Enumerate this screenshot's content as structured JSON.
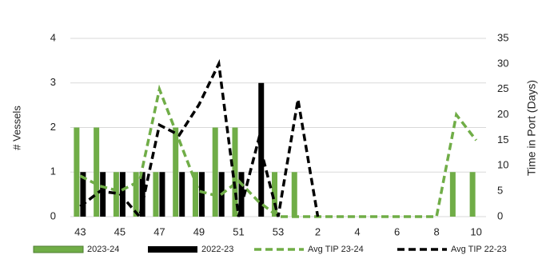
{
  "chart_data": {
    "type": "bar",
    "categories": [
      "43",
      null,
      "45",
      null,
      "47",
      null,
      "49",
      null,
      "51",
      null,
      "53",
      null,
      "2",
      null,
      "4",
      null,
      "6",
      null,
      "8",
      null,
      "10"
    ],
    "series": [
      {
        "name": "2023-24",
        "color": "#70ad47",
        "kind": "bar",
        "values": [
          2,
          2,
          1,
          1,
          1,
          2,
          1,
          2,
          2,
          0,
          1,
          1,
          0,
          0,
          0,
          0,
          0,
          0,
          0,
          1,
          1
        ]
      },
      {
        "name": "2022-23",
        "color": "#000000",
        "kind": "bar",
        "values": [
          1,
          1,
          1,
          1,
          1,
          1,
          1,
          1,
          1,
          3,
          0,
          0,
          0,
          0,
          0,
          0,
          0,
          0,
          0,
          0,
          0
        ]
      },
      {
        "name": "Avg TIP 23-24",
        "color": "#70ad47",
        "kind": "line",
        "axis": "y2",
        "values": [
          8,
          6,
          5,
          7,
          25,
          15,
          5,
          4,
          7,
          3,
          0,
          0,
          0,
          0,
          0,
          0,
          0,
          0,
          0,
          20,
          15
        ]
      },
      {
        "name": "Avg TIP 22-23",
        "color": "#000000",
        "kind": "line",
        "axis": "y2",
        "values": [
          2,
          5,
          4.5,
          0,
          18,
          16,
          22,
          30,
          0,
          15,
          0,
          23,
          0,
          null,
          null,
          null,
          null,
          null,
          null,
          null,
          null
        ]
      }
    ],
    "y_label": "# Vessels",
    "y2_label": "Time in Port (Days)",
    "ylim": [
      0,
      4
    ],
    "yticks": [
      0,
      1,
      2,
      3,
      4
    ],
    "y2lim": [
      0,
      35
    ],
    "y2ticks": [
      0,
      5,
      10,
      15,
      20,
      25,
      30,
      35
    ],
    "grid": true,
    "legend": "bottom"
  }
}
